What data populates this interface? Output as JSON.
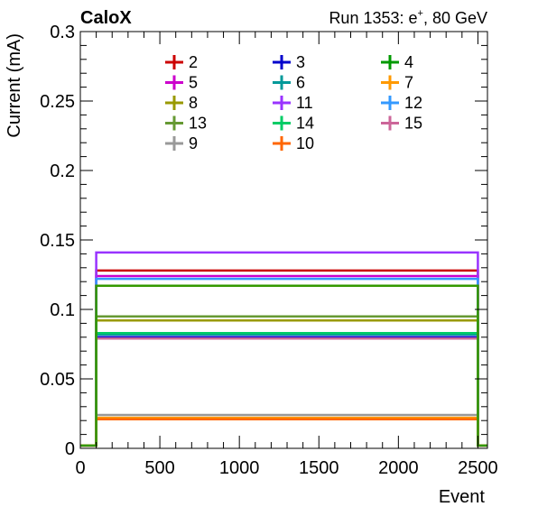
{
  "chart_data": {
    "type": "line",
    "title_left": "CaloX",
    "title_right_prefix": "Run 1353: e",
    "title_right_sup": "+",
    "title_right_suffix": ", 80 GeV",
    "xlabel": "Event",
    "ylabel": "Current (mA)",
    "xlim": [
      0,
      2560
    ],
    "ylim": [
      0,
      0.3
    ],
    "xticks": [
      0,
      500,
      1000,
      1500,
      2000,
      2500
    ],
    "xtick_labels": [
      "0",
      "500",
      "1000",
      "1500",
      "2000",
      "2500"
    ],
    "yticks": [
      0,
      0.05,
      0.1,
      0.15,
      0.2,
      0.25,
      0.3
    ],
    "ytick_labels": [
      "0",
      "0.05",
      "0.1",
      "0.15",
      "0.2",
      "0.25",
      "0.3"
    ],
    "x_start": 100,
    "x_end": 2500,
    "baseline": 0.002,
    "legend_position": "top-center",
    "series": [
      {
        "name": "2",
        "color": "#cc0000",
        "level": 0.128
      },
      {
        "name": "3",
        "color": "#0000cc",
        "level": 0.08
      },
      {
        "name": "4",
        "color": "#009900",
        "level": 0.082
      },
      {
        "name": "5",
        "color": "#cc00cc",
        "level": 0.124
      },
      {
        "name": "6",
        "color": "#009999",
        "level": 0.082
      },
      {
        "name": "7",
        "color": "#ff9900",
        "level": 0.022
      },
      {
        "name": "8",
        "color": "#999900",
        "level": 0.092
      },
      {
        "name": "11",
        "color": "#9933ff",
        "level": 0.141
      },
      {
        "name": "12",
        "color": "#3399ff",
        "level": 0.122
      },
      {
        "name": "13",
        "color": "#669933",
        "level": 0.095
      },
      {
        "name": "14",
        "color": "#00cc66",
        "level": 0.083
      },
      {
        "name": "15",
        "color": "#cc6699",
        "level": 0.079
      },
      {
        "name": "9",
        "color": "#999999",
        "level": 0.024
      },
      {
        "name": "10",
        "color": "#ff6600",
        "level": 0.021
      },
      {
        "name": "",
        "color": "#339900",
        "level": 0.117
      }
    ]
  }
}
